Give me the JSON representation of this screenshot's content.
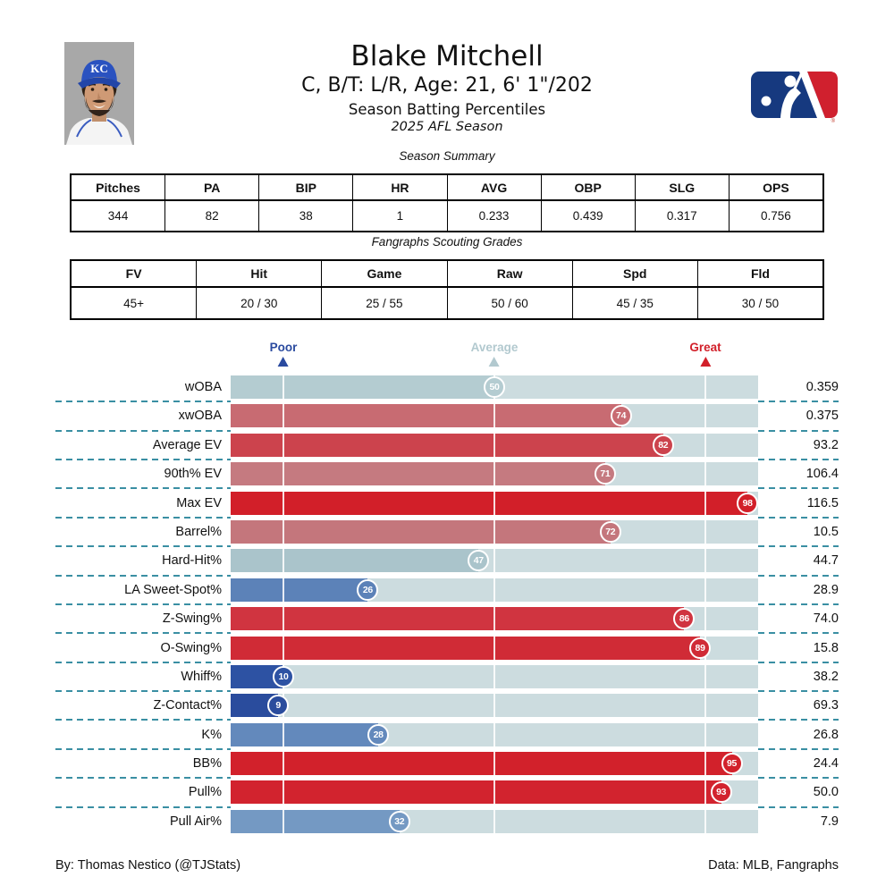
{
  "header": {
    "title": "Blake Mitchell",
    "subtitle": "C, B/T: L/R, Age: 21, 6' 1\"/202",
    "section_title": "Season Batting Percentiles",
    "season": "2025 AFL Season",
    "team_initials": "KC"
  },
  "season_summary": {
    "title": "Season Summary",
    "columns": [
      "Pitches",
      "PA",
      "BIP",
      "HR",
      "AVG",
      "OBP",
      "SLG",
      "OPS"
    ],
    "values": [
      "344",
      "82",
      "38",
      "1",
      "0.233",
      "0.439",
      "0.317",
      "0.756"
    ]
  },
  "scouting": {
    "title": "Fangraphs Scouting Grades",
    "columns": [
      "FV",
      "Hit",
      "Game",
      "Raw",
      "Spd",
      "Fld"
    ],
    "values": [
      "45+",
      "20 / 30",
      "25 / 55",
      "50 / 60",
      "45 / 35",
      "30 / 50"
    ]
  },
  "chart_data": {
    "type": "bar",
    "orientation": "horizontal",
    "scale": "percentile 0-100",
    "track_color": "#ccdcdf",
    "dash_color": "#3a8fa3",
    "axis_markers": [
      {
        "label": "Poor",
        "position_pct": 10,
        "color": "#2a4a9f"
      },
      {
        "label": "Average",
        "position_pct": 50,
        "color": "#b2c9cf"
      },
      {
        "label": "Great",
        "position_pct": 90,
        "color": "#d2202a"
      }
    ],
    "rows": [
      {
        "label": "wOBA",
        "percentile": 50,
        "value": "0.359",
        "color": "#b4ccd1"
      },
      {
        "label": "xwOBA",
        "percentile": 74,
        "value": "0.375",
        "color": "#c86b72"
      },
      {
        "label": "Average EV",
        "percentile": 82,
        "value": "93.2",
        "color": "#cc434d"
      },
      {
        "label": "90th% EV",
        "percentile": 71,
        "value": "106.4",
        "color": "#c57a80"
      },
      {
        "label": "Max EV",
        "percentile": 98,
        "value": "116.5",
        "color": "#d21f29"
      },
      {
        "label": "Barrel%",
        "percentile": 72,
        "value": "10.5",
        "color": "#c4767c"
      },
      {
        "label": "Hard-Hit%",
        "percentile": 47,
        "value": "44.7",
        "color": "#aac4cb"
      },
      {
        "label": "LA Sweet-Spot%",
        "percentile": 26,
        "value": "28.9",
        "color": "#5c82b8"
      },
      {
        "label": "Z-Swing%",
        "percentile": 86,
        "value": "74.0",
        "color": "#d03440"
      },
      {
        "label": "O-Swing%",
        "percentile": 89,
        "value": "15.8",
        "color": "#d02b36"
      },
      {
        "label": "Whiff%",
        "percentile": 10,
        "value": "38.2",
        "color": "#2d52a3"
      },
      {
        "label": "Z-Contact%",
        "percentile": 9,
        "value": "69.3",
        "color": "#2a4c9d"
      },
      {
        "label": "K%",
        "percentile": 28,
        "value": "26.8",
        "color": "#6389bc"
      },
      {
        "label": "BB%",
        "percentile": 95,
        "value": "24.4",
        "color": "#d2212b"
      },
      {
        "label": "Pull%",
        "percentile": 93,
        "value": "50.0",
        "color": "#d2232e"
      },
      {
        "label": "Pull Air%",
        "percentile": 32,
        "value": "7.9",
        "color": "#7499c3"
      }
    ]
  },
  "footer": {
    "left": "By: Thomas Nestico (@TJStats)",
    "right": "Data: MLB, Fangraphs"
  }
}
